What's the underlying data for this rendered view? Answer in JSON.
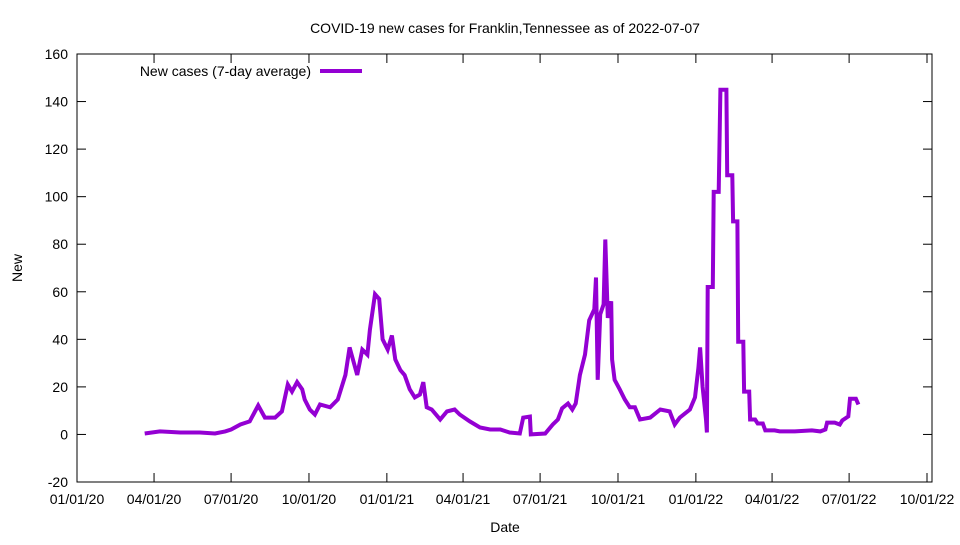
{
  "chart_data": {
    "type": "line",
    "title": "COVID-19 new cases for Franklin,Tennessee as of 2022-07-07",
    "xlabel": "Date",
    "ylabel": "New",
    "x_unit": "days since 2020-01-01",
    "xlim": [
      0,
      1004
    ],
    "ylim": [
      -20,
      160
    ],
    "yticks": [
      -20,
      0,
      20,
      40,
      60,
      80,
      100,
      120,
      140,
      160
    ],
    "xticks": [
      {
        "day": 0,
        "label": "01/01/20"
      },
      {
        "day": 91,
        "label": "04/01/20"
      },
      {
        "day": 182,
        "label": "07/01/20"
      },
      {
        "day": 274,
        "label": "10/01/20"
      },
      {
        "day": 366,
        "label": "01/01/21"
      },
      {
        "day": 456,
        "label": "04/01/21"
      },
      {
        "day": 547,
        "label": "07/01/21"
      },
      {
        "day": 639,
        "label": "10/01/21"
      },
      {
        "day": 731,
        "label": "01/01/22"
      },
      {
        "day": 821,
        "label": "04/01/22"
      },
      {
        "day": 912,
        "label": "07/01/22"
      },
      {
        "day": 1004,
        "label": "10/01/22"
      }
    ],
    "grid": false,
    "legend_position": "top-left",
    "series": [
      {
        "name": "New cases (7-day average)",
        "color": "#9400d3",
        "x": [
          80,
          98,
          122,
          145,
          163,
          175,
          182,
          193,
          204,
          214,
          222,
          234,
          242,
          249,
          254,
          260,
          266,
          269,
          275,
          281,
          287,
          299,
          308,
          317,
          322,
          331,
          337,
          343,
          346,
          352,
          357,
          361,
          367,
          372,
          376,
          382,
          387,
          393,
          399,
          405,
          409,
          413,
          419,
          429,
          437,
          446,
          452,
          464,
          476,
          488,
          500,
          511,
          523,
          527,
          535,
          536,
          553,
          562,
          568,
          573,
          580,
          585,
          589,
          594,
          600,
          605,
          611,
          613,
          615,
          618,
          622,
          624,
          627,
          631,
          632,
          635,
          641,
          647,
          653,
          659,
          665,
          677,
          689,
          700,
          706,
          712,
          724,
          730,
          734,
          736,
          739,
          743,
          744,
          745,
          751,
          752,
          758,
          760,
          767,
          768,
          774,
          775,
          780,
          781,
          787,
          788,
          794,
          795,
          801,
          804,
          810,
          813,
          824,
          830,
          842,
          848,
          868,
          878,
          884,
          886,
          895,
          901,
          904,
          911,
          913,
          920,
          923
        ],
        "y": [
          0.4,
          1.3,
          0.8,
          0.8,
          0.4,
          1.3,
          2.1,
          4.2,
          5.5,
          12.2,
          7.1,
          7.1,
          9.7,
          21,
          18,
          22,
          19,
          14.7,
          10.5,
          8.4,
          12.6,
          11.4,
          14.7,
          25,
          36.6,
          25,
          35.7,
          33.6,
          44,
          59,
          57,
          40,
          35.7,
          41.6,
          31.5,
          27,
          25,
          19,
          15.6,
          16.8,
          22,
          11.4,
          10.5,
          6.3,
          9.7,
          10.5,
          8.4,
          5.5,
          2.9,
          2.1,
          2.1,
          0.8,
          0.4,
          7.1,
          7.5,
          0,
          0.4,
          4.2,
          6.3,
          11,
          13,
          10.5,
          13,
          25,
          33.6,
          48,
          52.6,
          66,
          23,
          50.5,
          54.7,
          82,
          49,
          56,
          31.5,
          23,
          19,
          14.7,
          11.4,
          11.4,
          6.3,
          7.1,
          10.5,
          9.7,
          4.2,
          7.1,
          10.5,
          15.6,
          28,
          36.6,
          20,
          6.3,
          0.8,
          62,
          62,
          102,
          102,
          145,
          145,
          109,
          109,
          89.6,
          89.6,
          39,
          39,
          18,
          18,
          6.3,
          6.3,
          4.6,
          4.6,
          1.7,
          1.7,
          1.3,
          1.3,
          1.3,
          1.7,
          1.3,
          2.1,
          5,
          5,
          4.2,
          5.9,
          7.6,
          15,
          15,
          12.6
        ]
      }
    ]
  }
}
